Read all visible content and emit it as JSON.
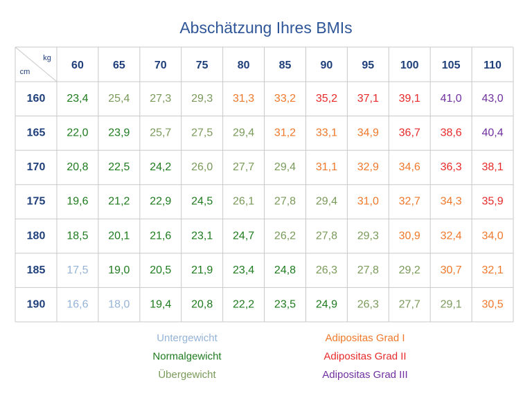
{
  "title": "Abschätzung Ihres BMIs",
  "table": {
    "corner": {
      "top": "kg",
      "bottom": "cm"
    },
    "columns": [
      "60",
      "65",
      "70",
      "75",
      "80",
      "85",
      "90",
      "95",
      "100",
      "105",
      "110"
    ],
    "rows": [
      {
        "label": "160",
        "cells": [
          {
            "text": "23,4",
            "color": "#1e7b1e"
          },
          {
            "text": "25,4",
            "color": "#7a9a5a"
          },
          {
            "text": "27,3",
            "color": "#7a9a5a"
          },
          {
            "text": "29,3",
            "color": "#7a9a5a"
          },
          {
            "text": "31,3",
            "color": "#f0782a"
          },
          {
            "text": "33,2",
            "color": "#f0782a"
          },
          {
            "text": "35,2",
            "color": "#e8292a"
          },
          {
            "text": "37,1",
            "color": "#e8292a"
          },
          {
            "text": "39,1",
            "color": "#e8292a"
          },
          {
            "text": "41,0",
            "color": "#7030a0"
          },
          {
            "text": "43,0",
            "color": "#7030a0"
          }
        ]
      },
      {
        "label": "165",
        "cells": [
          {
            "text": "22,0",
            "color": "#1e7b1e"
          },
          {
            "text": "23,9",
            "color": "#1e7b1e"
          },
          {
            "text": "25,7",
            "color": "#7a9a5a"
          },
          {
            "text": "27,5",
            "color": "#7a9a5a"
          },
          {
            "text": "29,4",
            "color": "#7a9a5a"
          },
          {
            "text": "31,2",
            "color": "#f0782a"
          },
          {
            "text": "33,1",
            "color": "#f0782a"
          },
          {
            "text": "34,9",
            "color": "#f0782a"
          },
          {
            "text": "36,7",
            "color": "#e8292a"
          },
          {
            "text": "38,6",
            "color": "#e8292a"
          },
          {
            "text": "40,4",
            "color": "#7030a0"
          }
        ]
      },
      {
        "label": "170",
        "cells": [
          {
            "text": "20,8",
            "color": "#1e7b1e"
          },
          {
            "text": "22,5",
            "color": "#1e7b1e"
          },
          {
            "text": "24,2",
            "color": "#1e7b1e"
          },
          {
            "text": "26,0",
            "color": "#7a9a5a"
          },
          {
            "text": "27,7",
            "color": "#7a9a5a"
          },
          {
            "text": "29,4",
            "color": "#7a9a5a"
          },
          {
            "text": "31,1",
            "color": "#f0782a"
          },
          {
            "text": "32,9",
            "color": "#f0782a"
          },
          {
            "text": "34,6",
            "color": "#f0782a"
          },
          {
            "text": "36,3",
            "color": "#e8292a"
          },
          {
            "text": "38,1",
            "color": "#e8292a"
          }
        ]
      },
      {
        "label": "175",
        "cells": [
          {
            "text": "19,6",
            "color": "#1e7b1e"
          },
          {
            "text": "21,2",
            "color": "#1e7b1e"
          },
          {
            "text": "22,9",
            "color": "#1e7b1e"
          },
          {
            "text": "24,5",
            "color": "#1e7b1e"
          },
          {
            "text": "26,1",
            "color": "#7a9a5a"
          },
          {
            "text": "27,8",
            "color": "#7a9a5a"
          },
          {
            "text": "29,4",
            "color": "#7a9a5a"
          },
          {
            "text": "31,0",
            "color": "#f0782a"
          },
          {
            "text": "32,7",
            "color": "#f0782a"
          },
          {
            "text": "34,3",
            "color": "#f0782a"
          },
          {
            "text": "35,9",
            "color": "#e8292a"
          }
        ]
      },
      {
        "label": "180",
        "cells": [
          {
            "text": "18,5",
            "color": "#1e7b1e"
          },
          {
            "text": "20,1",
            "color": "#1e7b1e"
          },
          {
            "text": "21,6",
            "color": "#1e7b1e"
          },
          {
            "text": "23,1",
            "color": "#1e7b1e"
          },
          {
            "text": "24,7",
            "color": "#1e7b1e"
          },
          {
            "text": "26,2",
            "color": "#7a9a5a"
          },
          {
            "text": "27,8",
            "color": "#7a9a5a"
          },
          {
            "text": "29,3",
            "color": "#7a9a5a"
          },
          {
            "text": "30,9",
            "color": "#f0782a"
          },
          {
            "text": "32,4",
            "color": "#f0782a"
          },
          {
            "text": "34,0",
            "color": "#f0782a"
          }
        ]
      },
      {
        "label": "185",
        "cells": [
          {
            "text": "17,5",
            "color": "#95b3d7"
          },
          {
            "text": "19,0",
            "color": "#1e7b1e"
          },
          {
            "text": "20,5",
            "color": "#1e7b1e"
          },
          {
            "text": "21,9",
            "color": "#1e7b1e"
          },
          {
            "text": "23,4",
            "color": "#1e7b1e"
          },
          {
            "text": "24,8",
            "color": "#1e7b1e"
          },
          {
            "text": "26,3",
            "color": "#7a9a5a"
          },
          {
            "text": "27,8",
            "color": "#7a9a5a"
          },
          {
            "text": "29,2",
            "color": "#7a9a5a"
          },
          {
            "text": "30,7",
            "color": "#f0782a"
          },
          {
            "text": "32,1",
            "color": "#f0782a"
          }
        ]
      },
      {
        "label": "190",
        "cells": [
          {
            "text": "16,6",
            "color": "#95b3d7"
          },
          {
            "text": "18,0",
            "color": "#95b3d7"
          },
          {
            "text": "19,4",
            "color": "#1e7b1e"
          },
          {
            "text": "20,8",
            "color": "#1e7b1e"
          },
          {
            "text": "22,2",
            "color": "#1e7b1e"
          },
          {
            "text": "23,5",
            "color": "#1e7b1e"
          },
          {
            "text": "24,9",
            "color": "#1e7b1e"
          },
          {
            "text": "26,3",
            "color": "#7a9a5a"
          },
          {
            "text": "27,7",
            "color": "#7a9a5a"
          },
          {
            "text": "29,1",
            "color": "#7a9a5a"
          },
          {
            "text": "30,5",
            "color": "#f0782a"
          }
        ]
      }
    ]
  },
  "legend": [
    {
      "label": "Untergewicht",
      "color": "#95b3d7"
    },
    {
      "label": "Normalgewicht",
      "color": "#1e7b1e"
    },
    {
      "label": "Übergewicht",
      "color": "#7a9a5a"
    },
    {
      "label": "Adipositas Grad I",
      "color": "#f0782a"
    },
    {
      "label": "Adipositas Grad II",
      "color": "#e8292a"
    },
    {
      "label": "Adipositas Grad III",
      "color": "#7030a0"
    }
  ]
}
